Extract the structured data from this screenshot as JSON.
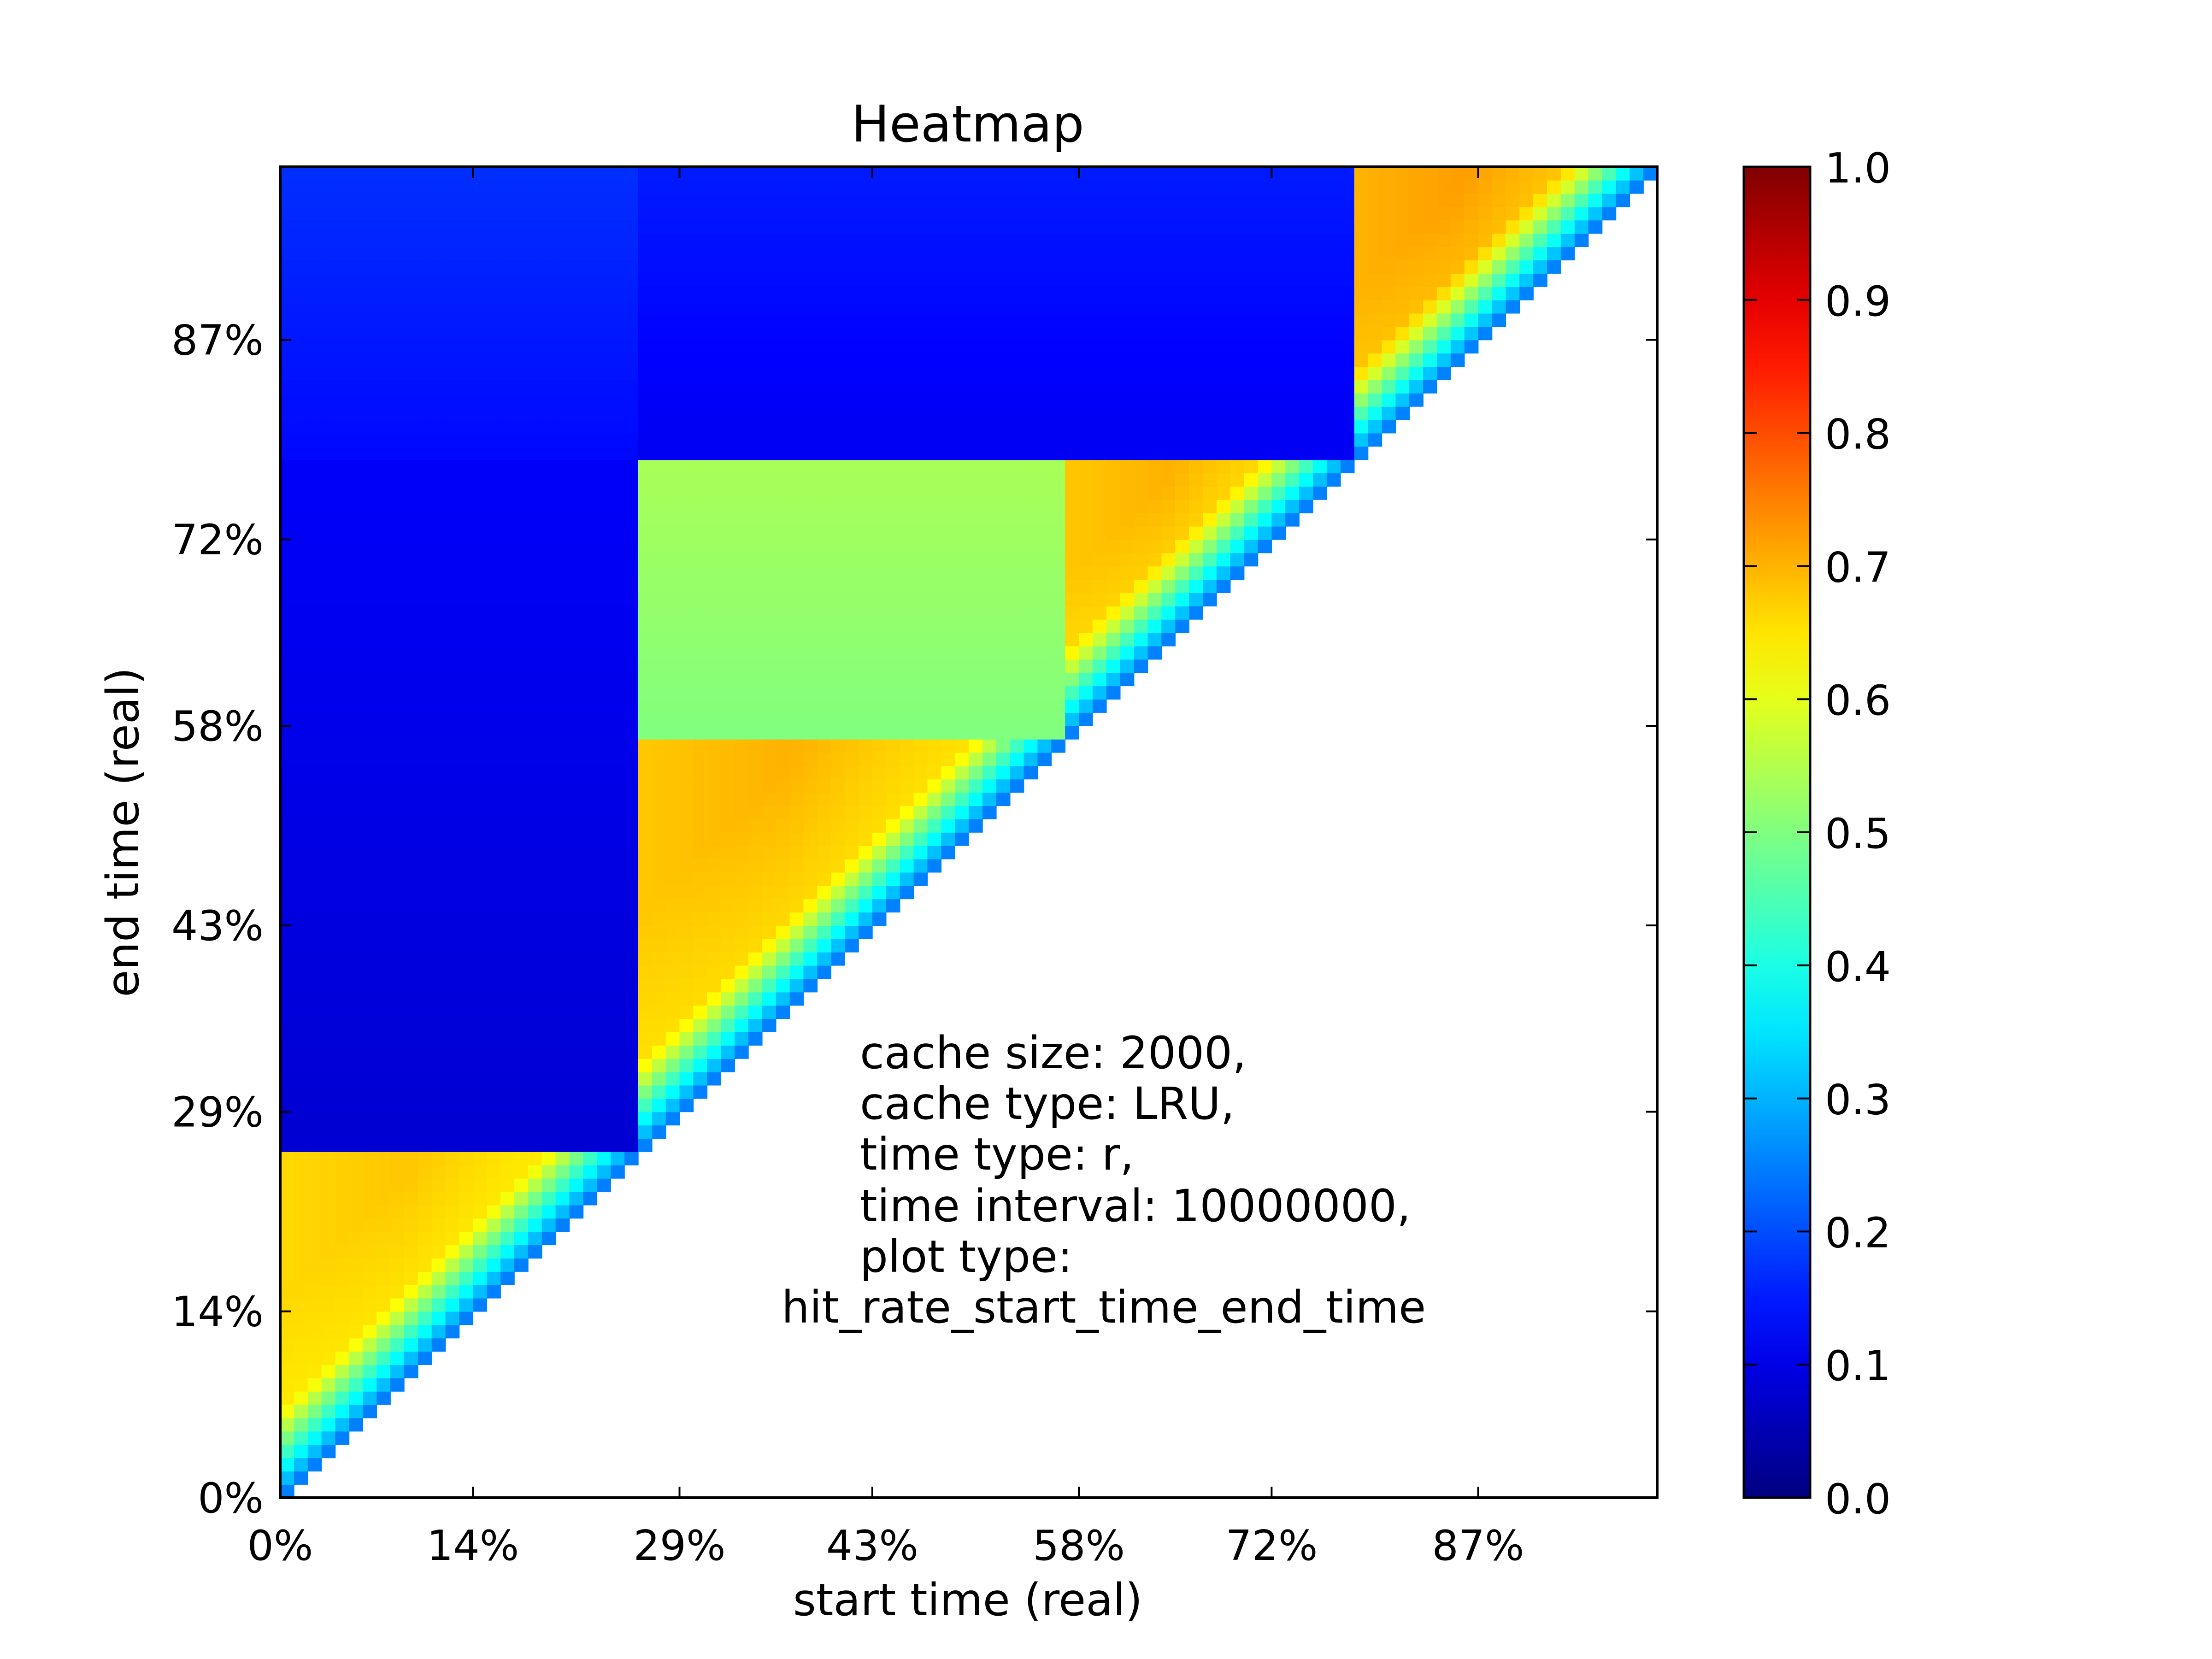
{
  "chart_data": {
    "type": "heatmap",
    "title": "Heatmap",
    "xlabel": "start time (real)",
    "ylabel": "end time (real)",
    "x_ticks": [
      "0%",
      "14%",
      "29%",
      "43%",
      "58%",
      "72%",
      "87%"
    ],
    "y_ticks": [
      "0%",
      "14%",
      "29%",
      "43%",
      "58%",
      "72%",
      "87%"
    ],
    "tick_values": [
      0,
      14,
      29,
      43,
      58,
      72,
      87
    ],
    "xlim": [
      0,
      100
    ],
    "ylim": [
      0,
      100
    ],
    "colorbar": {
      "colormap": "jet",
      "range": [
        0.0,
        1.0
      ],
      "ticks": [
        "0.0",
        "0.1",
        "0.2",
        "0.3",
        "0.4",
        "0.5",
        "0.6",
        "0.7",
        "0.8",
        "0.9",
        "1.0"
      ]
    },
    "annotation": [
      "cache size: 2000,",
      "cache type: LRU,",
      "time type:  r,",
      "time interval: 10000000,",
      "plot type:",
      "hit_rate_start_time_end_time"
    ],
    "phases": [
      {
        "start": 0,
        "end": 26,
        "hit_rate": 0.63,
        "peak": 0.68
      },
      {
        "start": 26,
        "end": 57,
        "hit_rate": 0.64,
        "peak": 0.7
      },
      {
        "start": 57,
        "end": 78,
        "hit_rate": 0.64,
        "peak": 0.7
      },
      {
        "start": 78,
        "end": 100,
        "hit_rate": 0.66,
        "peak": 0.72
      }
    ],
    "regions": [
      {
        "start": [
          0,
          26
        ],
        "end": [
          26,
          78
        ],
        "hit_rate": 0.1
      },
      {
        "start": [
          0,
          26
        ],
        "end": [
          78,
          100
        ],
        "hit_rate": 0.15
      },
      {
        "start": [
          26,
          57
        ],
        "end": [
          57,
          78
        ],
        "hit_rate": 0.52
      },
      {
        "start": [
          26,
          78
        ],
        "end": [
          78,
          100
        ],
        "hit_rate": 0.13
      }
    ]
  }
}
